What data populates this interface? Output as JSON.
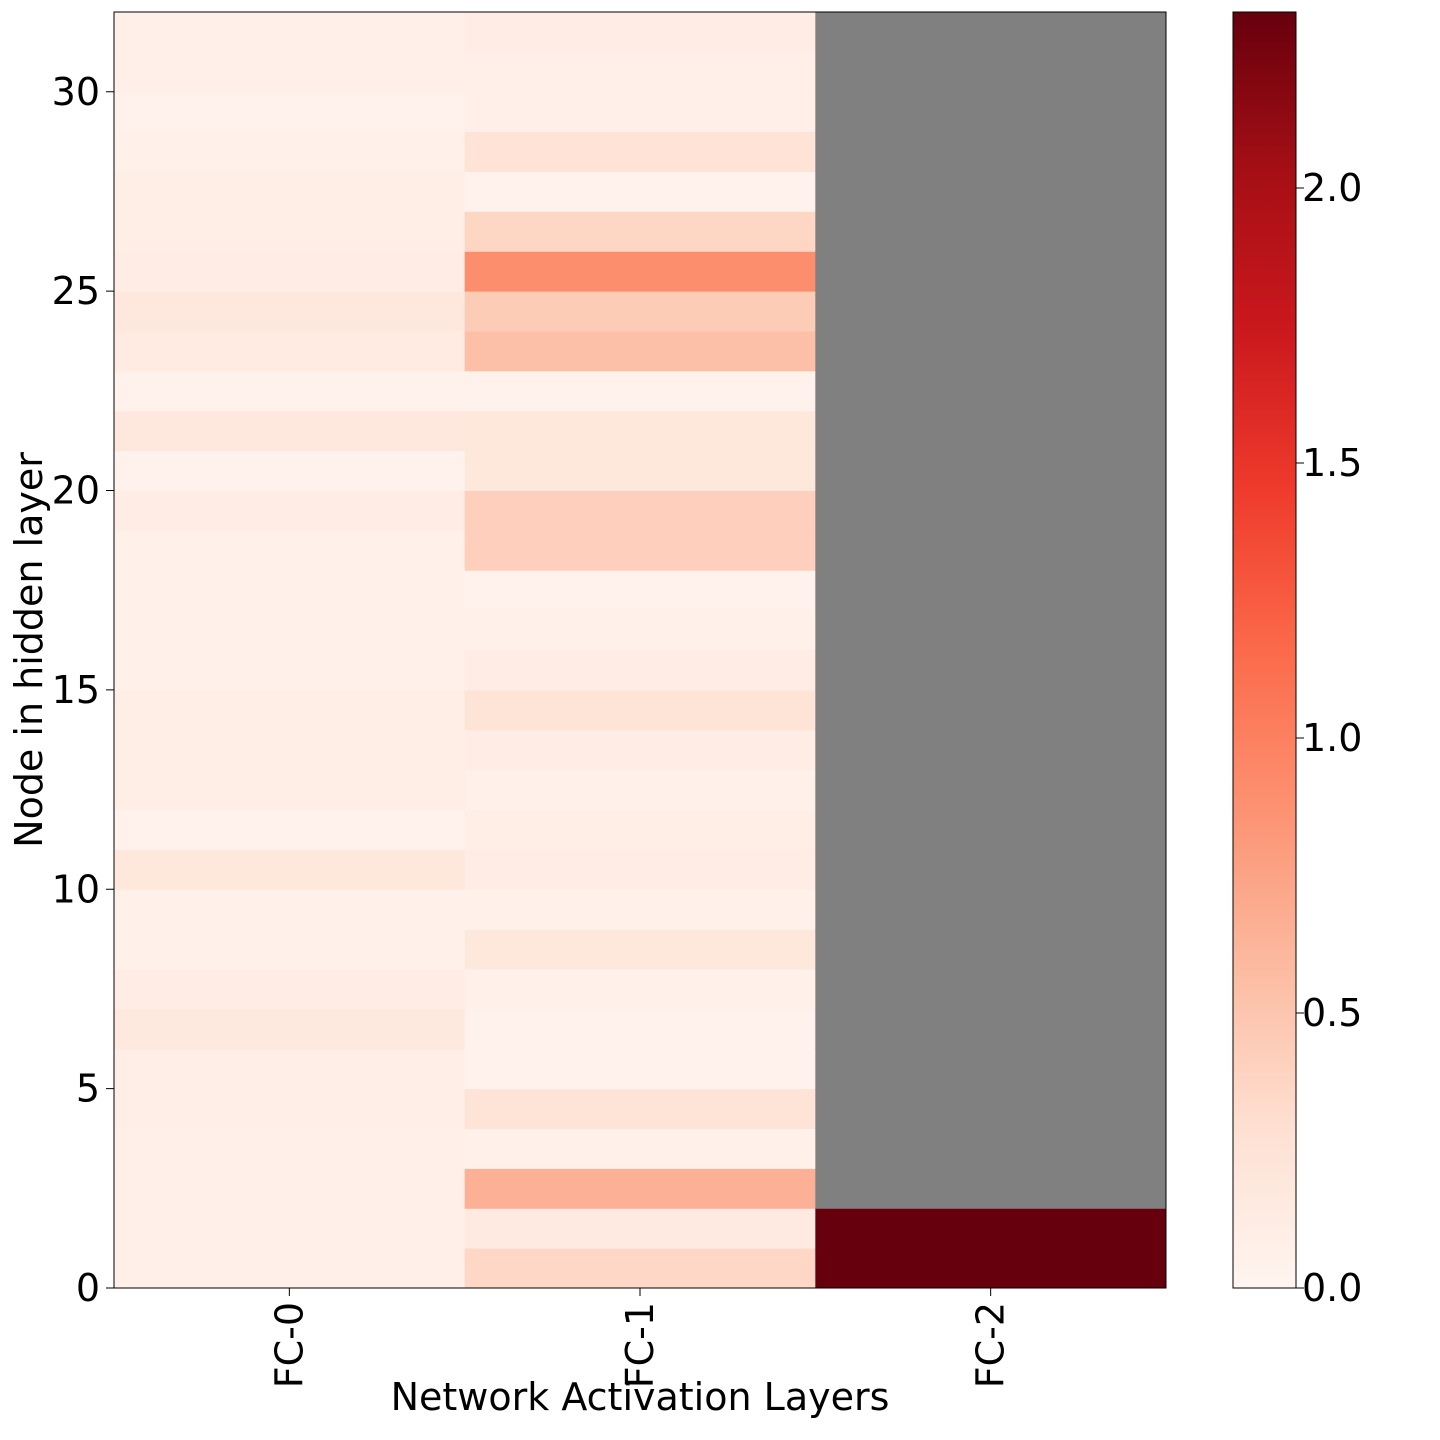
{
  "chart_data": {
    "type": "heatmap",
    "xlabel": "Network Activation Layers",
    "ylabel": "Node in hidden layer",
    "x_categories": [
      "FC-0",
      "FC-1",
      "FC-2"
    ],
    "y_ticks": [
      0,
      5,
      10,
      15,
      20,
      25,
      30
    ],
    "y_range": [
      0,
      32
    ],
    "grid": false,
    "colormap": "Reds",
    "missing_color": "#808080",
    "colorbar": {
      "range": [
        0,
        2.32
      ],
      "ticks": [
        "0.0",
        "0.5",
        "1.0",
        "1.5",
        "2.0"
      ],
      "placement": "right"
    },
    "columns": [
      {
        "name": "FC-0",
        "values": [
          0.08,
          0.08,
          0.08,
          0.08,
          0.09,
          0.09,
          0.17,
          0.12,
          0.06,
          0.06,
          0.2,
          0.04,
          0.1,
          0.1,
          0.1,
          0.07,
          0.06,
          0.06,
          0.06,
          0.12,
          0.05,
          0.18,
          0.04,
          0.14,
          0.18,
          0.11,
          0.1,
          0.1,
          0.06,
          0.05,
          0.08,
          0.08
        ]
      },
      {
        "name": "FC-1",
        "values": [
          0.36,
          0.15,
          0.65,
          0.06,
          0.24,
          0.05,
          0.05,
          0.06,
          0.2,
          0.06,
          0.11,
          0.1,
          0.07,
          0.11,
          0.24,
          0.12,
          0.06,
          0.05,
          0.42,
          0.42,
          0.2,
          0.2,
          0.04,
          0.54,
          0.45,
          0.9,
          0.37,
          0.04,
          0.25,
          0.08,
          0.08,
          0.12
        ]
      },
      {
        "name": "FC-2",
        "values": [
          2.32,
          2.32,
          null,
          null,
          null,
          null,
          null,
          null,
          null,
          null,
          null,
          null,
          null,
          null,
          null,
          null,
          null,
          null,
          null,
          null,
          null,
          null,
          null,
          null,
          null,
          null,
          null,
          null,
          null,
          null,
          null,
          null
        ]
      }
    ]
  }
}
